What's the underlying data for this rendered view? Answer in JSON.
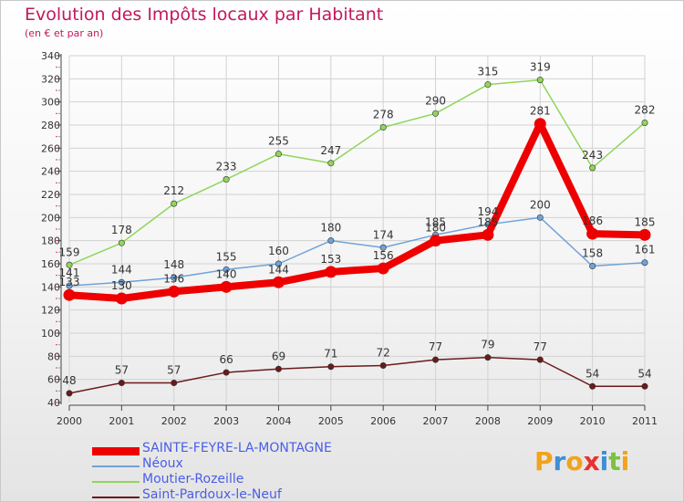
{
  "chart_data": {
    "type": "line",
    "title": "Evolution des Impôts locaux par Habitant",
    "subtitle": "(en € et par an)",
    "xlabel": "",
    "ylabel": "",
    "ylim": [
      40,
      340
    ],
    "yticks": [
      40,
      60,
      80,
      100,
      120,
      140,
      160,
      180,
      200,
      220,
      240,
      260,
      280,
      300,
      320,
      340
    ],
    "categories": [
      "2000",
      "2001",
      "2002",
      "2003",
      "2004",
      "2005",
      "2006",
      "2007",
      "2008",
      "2009",
      "2010",
      "2011"
    ],
    "legend_position": "bottom-left",
    "series": [
      {
        "name": "Saint-Pardoux-le-Neuf",
        "color": "#6b1a1a",
        "values": [
          48,
          57,
          57,
          66,
          69,
          71,
          72,
          77,
          79,
          77,
          54,
          54
        ],
        "labels": [
          "48",
          "57",
          "57",
          "66",
          "69",
          "71",
          "72",
          "77",
          "79",
          "77",
          "54",
          "54"
        ]
      },
      {
        "name": "Moutier-Rozeille",
        "color": "#8fd65a",
        "values": [
          159,
          178,
          212,
          233,
          255,
          247,
          278,
          290,
          315,
          319,
          243,
          282
        ],
        "labels": [
          "159",
          "178",
          "212",
          "233",
          "255",
          "247",
          "278",
          "290",
          "315",
          "319",
          "243",
          "282"
        ]
      },
      {
        "name": "Néoux",
        "color": "#6fa3d8",
        "values": [
          141,
          144,
          148,
          155,
          160,
          180,
          174,
          185,
          194,
          200,
          158,
          161
        ],
        "labels": [
          "141",
          "144",
          "148",
          "155",
          "160",
          "180",
          "174",
          "185",
          "194",
          "200",
          "158",
          "161"
        ]
      },
      {
        "name": "SAINTE-FEYRE-LA-MONTAGNE",
        "color": "#ee0000",
        "values": [
          133,
          130,
          136,
          140,
          144,
          153,
          156,
          180,
          185,
          281,
          186,
          185
        ],
        "labels": [
          "133",
          "130",
          "136",
          "140",
          "144",
          "153",
          "156",
          "180",
          "185",
          "281",
          "186",
          "185"
        ]
      }
    ]
  },
  "legend": {
    "items": [
      {
        "label": "SAINTE-FEYRE-LA-MONTAGNE",
        "color": "#ee0000"
      },
      {
        "label": "Néoux",
        "color": "#6fa3d8"
      },
      {
        "label": "Moutier-Rozeille",
        "color": "#8fd65a"
      },
      {
        "label": "Saint-Pardoux-le-Neuf",
        "color": "#6b1a1a"
      }
    ]
  },
  "logo": {
    "text": "Proxiti",
    "letters": [
      "P",
      "r",
      "o",
      "x",
      "i",
      "t",
      "i"
    ],
    "colors": [
      "#f2a31b",
      "#3d8fd6",
      "#f2a31b",
      "#e8322c",
      "#3d8fd6",
      "#7cc142",
      "#f2a31b"
    ]
  }
}
